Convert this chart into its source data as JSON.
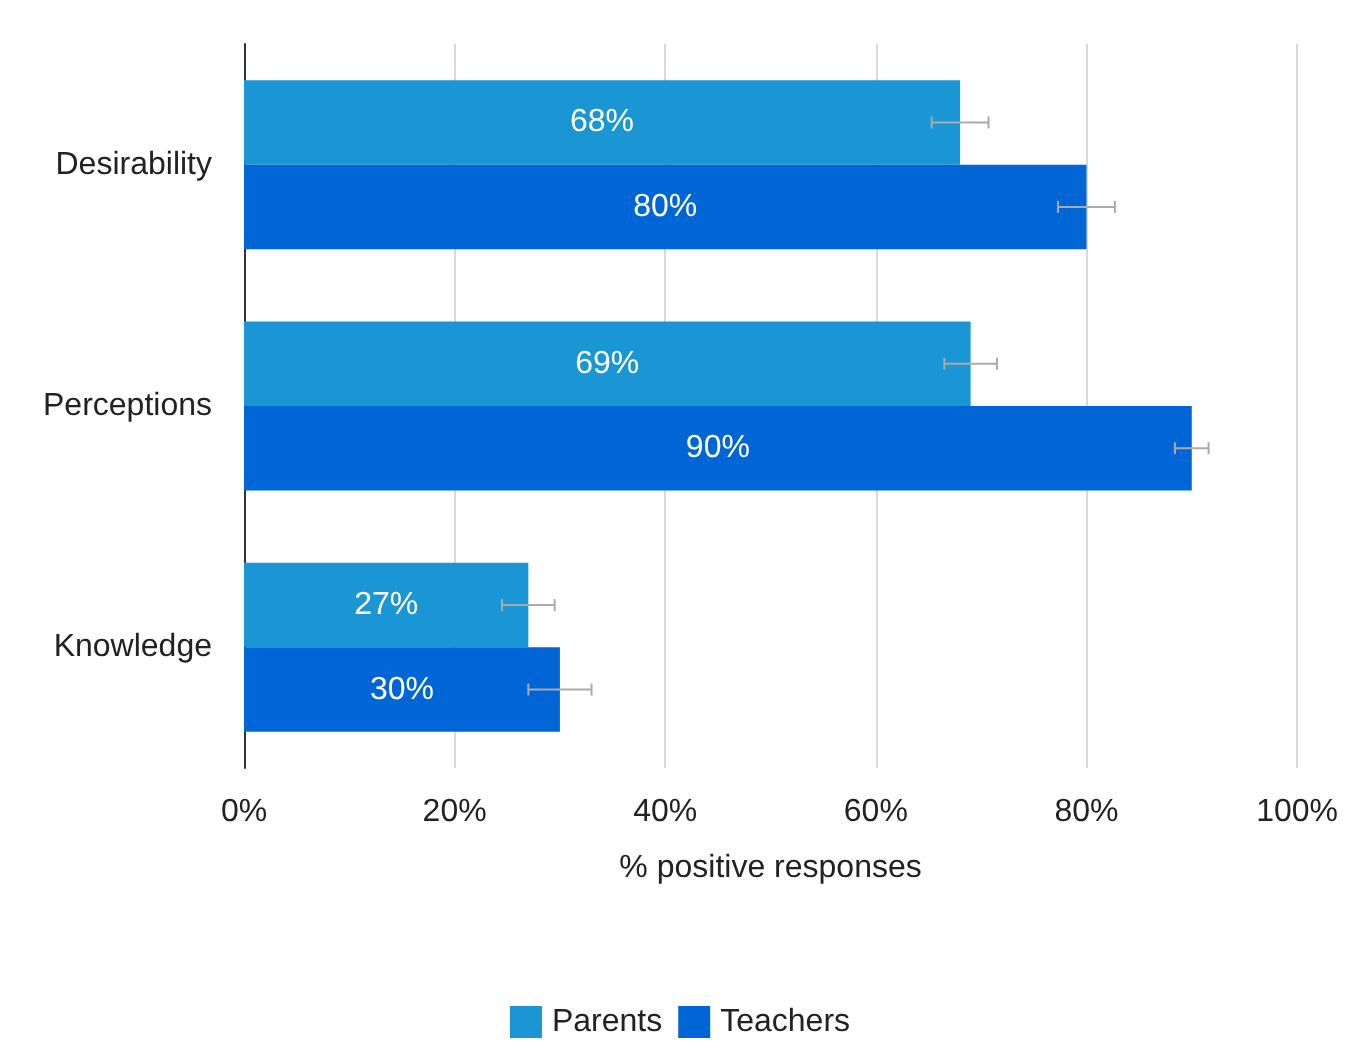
{
  "chart_data": {
    "type": "bar",
    "orientation": "horizontal",
    "xlabel": "% positive responses",
    "categories": [
      "Desirability",
      "Perceptions",
      "Knowledge"
    ],
    "series": [
      {
        "name": "Parents",
        "color": "#1a96d4",
        "values": [
          68,
          69,
          27
        ],
        "errors": [
          2.7,
          2.5,
          2.5
        ],
        "value_labels": [
          "68%",
          "69%",
          "27%"
        ]
      },
      {
        "name": "Teachers",
        "color": "#0066d6",
        "values": [
          80,
          90,
          30
        ],
        "errors": [
          2.7,
          1.6,
          3
        ],
        "value_labels": [
          "80%",
          "90%",
          "30%"
        ]
      }
    ],
    "xlim": [
      0,
      100
    ],
    "xticks": [
      {
        "value": 0,
        "label": "0%"
      },
      {
        "value": 20,
        "label": "20%"
      },
      {
        "value": 40,
        "label": "40%"
      },
      {
        "value": 60,
        "label": "60%"
      },
      {
        "value": 80,
        "label": "80%"
      },
      {
        "value": 100,
        "label": "100%"
      }
    ],
    "grid": "x",
    "legend": "bottom"
  }
}
